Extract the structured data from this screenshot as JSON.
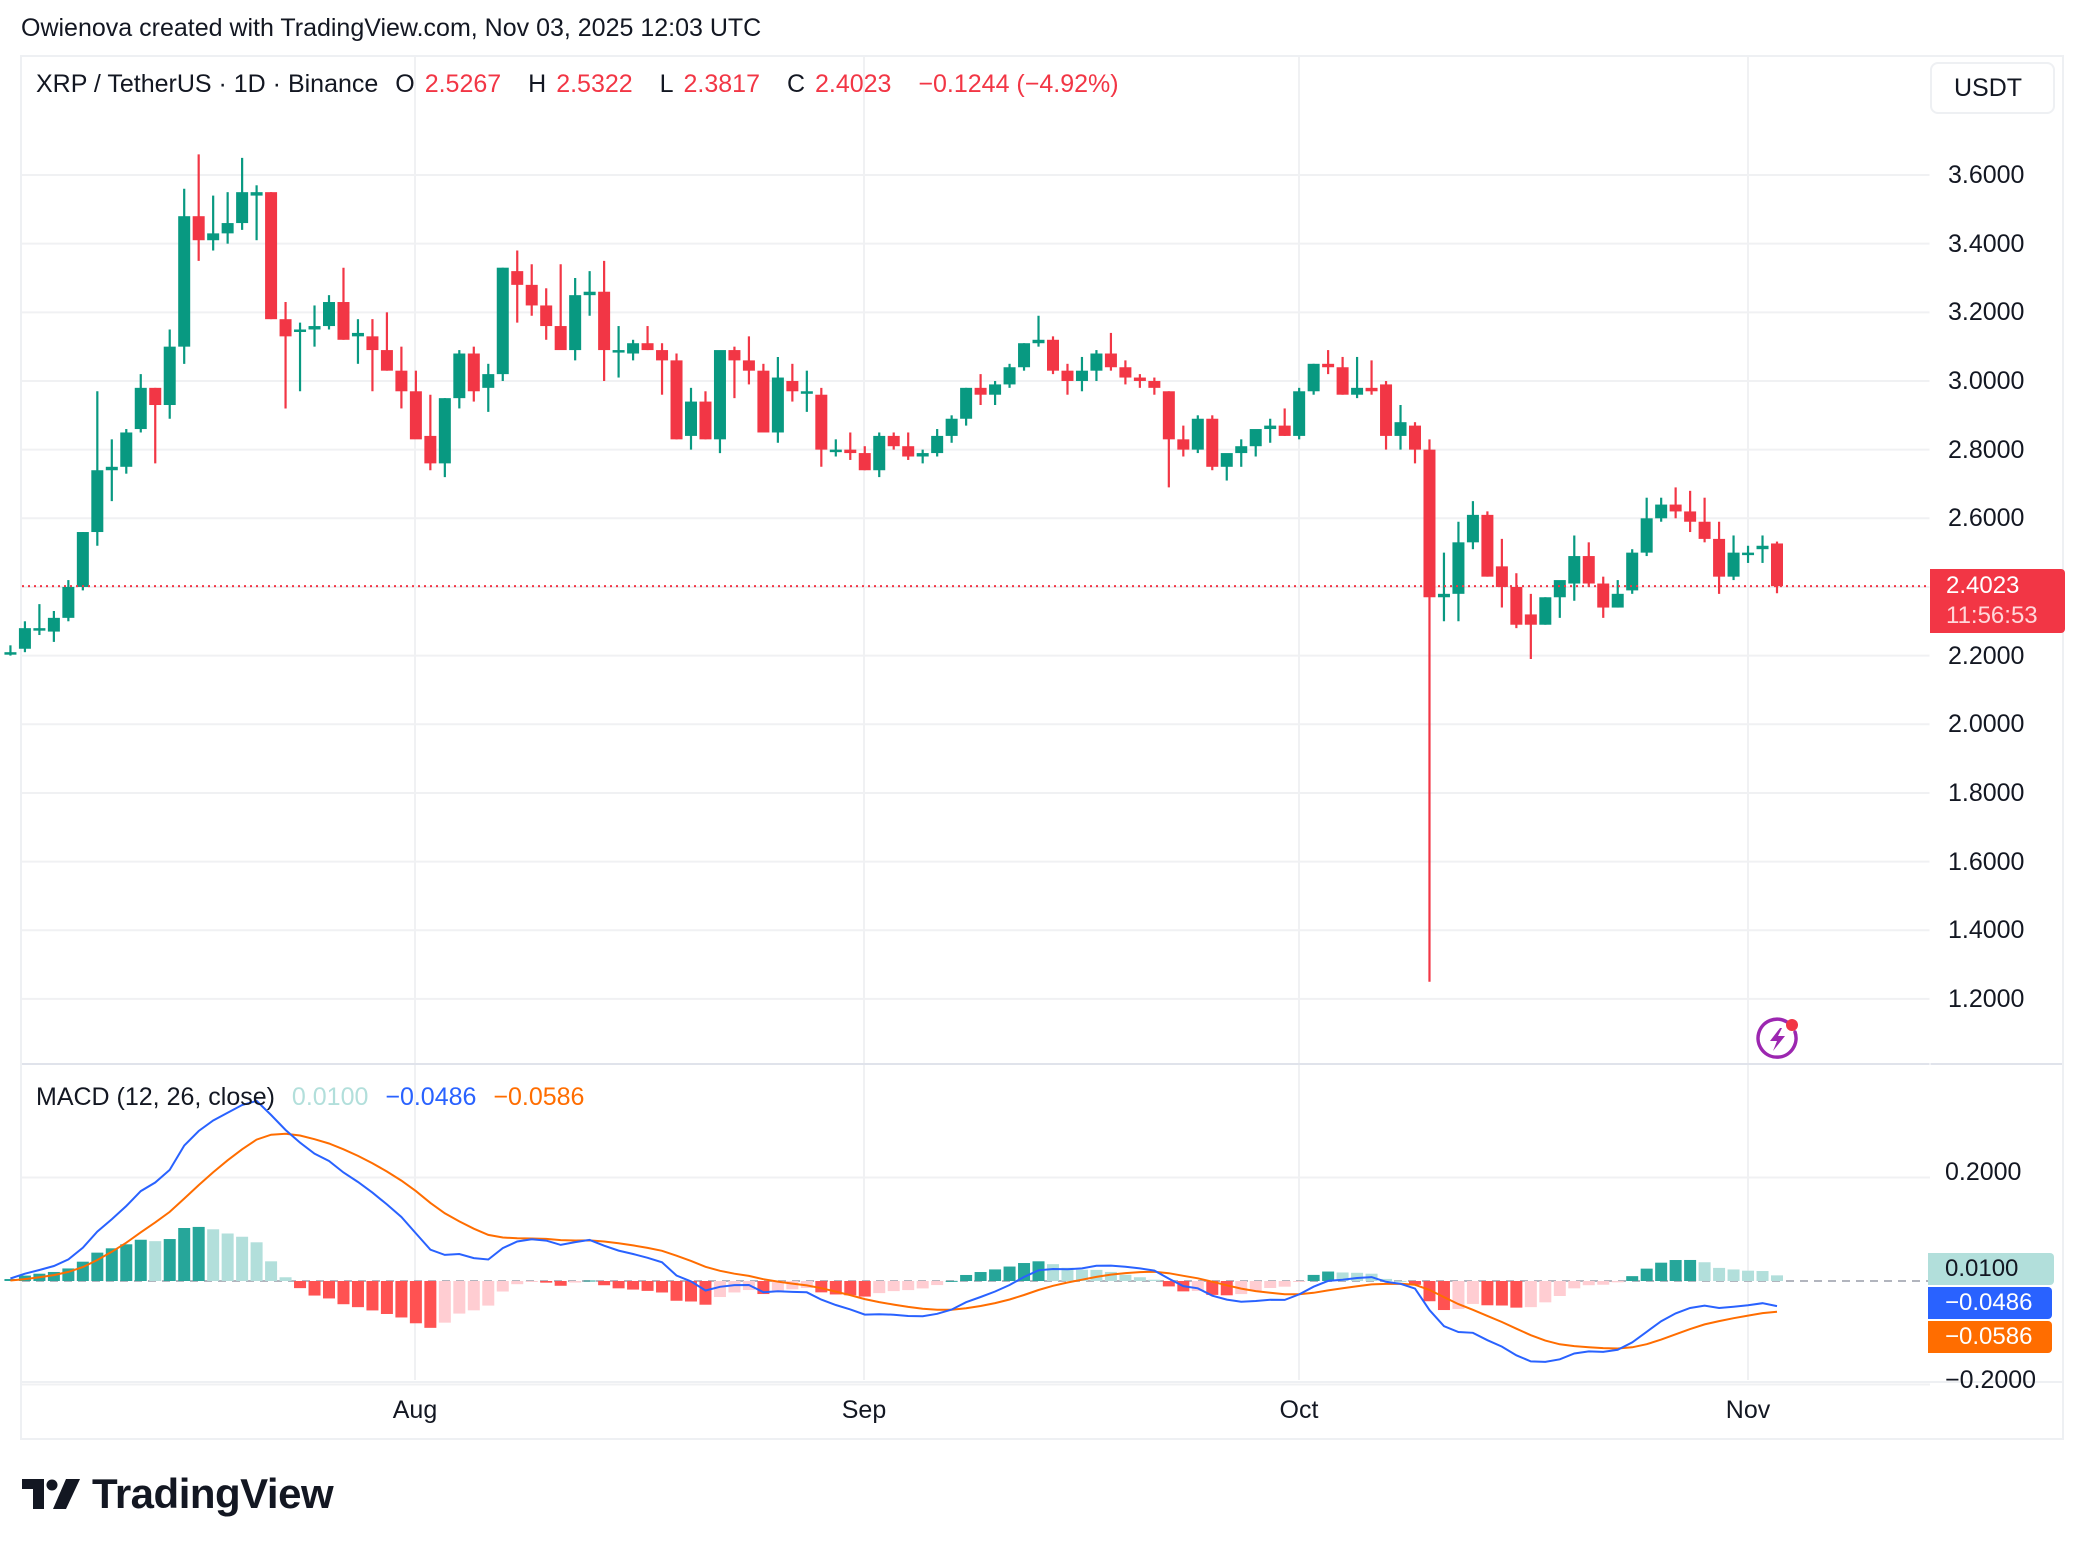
{
  "credit": "Owienova created with TradingView.com, Nov 03, 2025 12:03 UTC",
  "header": {
    "symbol": "XRP / TetherUS · 1D · Binance",
    "open_label": "O",
    "open": "2.5267",
    "high_label": "H",
    "high": "2.5322",
    "low_label": "L",
    "low": "2.3817",
    "close_label": "C",
    "close": "2.4023",
    "change": "−0.1244 (−4.92%)"
  },
  "currency_button": "USDT",
  "price_axis": [
    "3.6000",
    "3.4000",
    "3.2000",
    "3.0000",
    "2.8000",
    "2.6000",
    "2.2000",
    "2.0000",
    "1.8000",
    "1.6000",
    "1.4000",
    "1.2000"
  ],
  "last_price_tag": {
    "price": "2.4023",
    "countdown": "11:56:53"
  },
  "macd": {
    "title": "MACD (12, 26, close)",
    "histogram": "0.0100",
    "macd": "−0.0486",
    "signal": "−0.0586",
    "axis": [
      "0.2000",
      "−0.2000"
    ]
  },
  "time_axis": [
    "Aug",
    "Sep",
    "Oct",
    "Nov"
  ],
  "logo": "TradingView",
  "colors": {
    "up": "#089981",
    "down": "#f23645",
    "macd_line": "#2962ff",
    "signal_line": "#ff6d00",
    "hist_up_strong": "#26a69a",
    "hist_up_weak": "#b2dfdb",
    "hist_down_strong": "#ff5252",
    "hist_down_weak": "#ffcdd2",
    "grid": "#f0f1f3"
  },
  "chart_data": {
    "type": "candlestick",
    "title": "XRP / TetherUS · 1D · Binance",
    "xlabel": "",
    "ylabel": "USDT",
    "ylim": [
      1.05,
      3.85
    ],
    "x_start": "Jul 05, 2025",
    "x_end": "Nov 03, 2025",
    "x_ticks": [
      "Aug",
      "Sep",
      "Oct",
      "Nov"
    ],
    "y_ticks": [
      1.2,
      1.4,
      1.6,
      1.8,
      2.0,
      2.2,
      2.4,
      2.6,
      2.8,
      3.0,
      3.2,
      3.4,
      3.6
    ],
    "last": {
      "open": 2.5267,
      "high": 2.5322,
      "low": 2.3817,
      "close": 2.4023
    },
    "ohlc": [
      [
        2.21,
        2.23,
        2.2,
        2.21
      ],
      [
        2.22,
        2.3,
        2.21,
        2.28
      ],
      [
        2.28,
        2.35,
        2.26,
        2.28
      ],
      [
        2.27,
        2.33,
        2.24,
        2.31
      ],
      [
        2.31,
        2.42,
        2.3,
        2.4
      ],
      [
        2.4,
        2.56,
        2.39,
        2.56
      ],
      [
        2.56,
        2.97,
        2.52,
        2.74
      ],
      [
        2.74,
        2.83,
        2.65,
        2.75
      ],
      [
        2.75,
        2.86,
        2.73,
        2.85
      ],
      [
        2.86,
        3.02,
        2.85,
        2.98
      ],
      [
        2.98,
        2.98,
        2.76,
        2.93
      ],
      [
        2.93,
        3.15,
        2.89,
        3.1
      ],
      [
        3.1,
        3.56,
        3.05,
        3.48
      ],
      [
        3.48,
        3.66,
        3.35,
        3.41
      ],
      [
        3.41,
        3.54,
        3.38,
        3.43
      ],
      [
        3.43,
        3.55,
        3.4,
        3.46
      ],
      [
        3.46,
        3.65,
        3.44,
        3.55
      ],
      [
        3.54,
        3.57,
        3.41,
        3.55
      ],
      [
        3.55,
        3.55,
        3.18,
        3.18
      ],
      [
        3.18,
        3.23,
        2.92,
        3.13
      ],
      [
        3.15,
        3.17,
        2.97,
        3.15
      ],
      [
        3.15,
        3.22,
        3.1,
        3.16
      ],
      [
        3.16,
        3.25,
        3.15,
        3.23
      ],
      [
        3.23,
        3.33,
        3.12,
        3.12
      ],
      [
        3.13,
        3.18,
        3.05,
        3.14
      ],
      [
        3.13,
        3.18,
        2.97,
        3.09
      ],
      [
        3.09,
        3.2,
        3.03,
        3.03
      ],
      [
        3.03,
        3.1,
        2.92,
        2.97
      ],
      [
        2.97,
        3.03,
        2.91,
        2.83
      ],
      [
        2.84,
        2.96,
        2.74,
        2.76
      ],
      [
        2.76,
        2.95,
        2.72,
        2.95
      ],
      [
        2.95,
        3.09,
        2.92,
        3.08
      ],
      [
        3.08,
        3.1,
        2.94,
        2.97
      ],
      [
        2.98,
        3.05,
        2.91,
        3.02
      ],
      [
        3.02,
        3.33,
        3.0,
        3.33
      ],
      [
        3.32,
        3.38,
        3.17,
        3.28
      ],
      [
        3.28,
        3.34,
        3.19,
        3.22
      ],
      [
        3.22,
        3.27,
        3.12,
        3.16
      ],
      [
        3.16,
        3.34,
        3.13,
        3.09
      ],
      [
        3.09,
        3.3,
        3.06,
        3.25
      ],
      [
        3.25,
        3.32,
        3.19,
        3.26
      ],
      [
        3.26,
        3.35,
        3.0,
        3.09
      ],
      [
        3.09,
        3.16,
        3.01,
        3.09
      ],
      [
        3.08,
        3.12,
        3.06,
        3.11
      ],
      [
        3.11,
        3.16,
        3.09,
        3.09
      ],
      [
        3.09,
        3.11,
        2.96,
        3.06
      ],
      [
        3.06,
        3.08,
        2.83,
        2.83
      ],
      [
        2.84,
        2.98,
        2.8,
        2.94
      ],
      [
        2.94,
        2.97,
        2.83,
        2.83
      ],
      [
        2.83,
        3.07,
        2.79,
        3.09
      ],
      [
        3.09,
        3.1,
        2.95,
        3.06
      ],
      [
        3.06,
        3.13,
        2.99,
        3.03
      ],
      [
        3.03,
        3.05,
        2.92,
        2.85
      ],
      [
        2.85,
        3.07,
        2.82,
        3.01
      ],
      [
        3.0,
        3.05,
        2.94,
        2.97
      ],
      [
        2.97,
        3.03,
        2.91,
        2.97
      ],
      [
        2.96,
        2.98,
        2.75,
        2.8
      ],
      [
        2.8,
        2.83,
        2.78,
        2.8
      ],
      [
        2.8,
        2.85,
        2.77,
        2.79
      ],
      [
        2.79,
        2.81,
        2.74,
        2.74
      ],
      [
        2.74,
        2.85,
        2.72,
        2.84
      ],
      [
        2.84,
        2.85,
        2.8,
        2.81
      ],
      [
        2.81,
        2.85,
        2.77,
        2.78
      ],
      [
        2.78,
        2.8,
        2.76,
        2.79
      ],
      [
        2.79,
        2.86,
        2.78,
        2.84
      ],
      [
        2.84,
        2.9,
        2.82,
        2.89
      ],
      [
        2.89,
        2.98,
        2.87,
        2.98
      ],
      [
        2.98,
        3.02,
        2.93,
        2.96
      ],
      [
        2.96,
        3.0,
        2.93,
        2.99
      ],
      [
        2.99,
        3.05,
        2.98,
        3.04
      ],
      [
        3.04,
        3.11,
        3.03,
        3.11
      ],
      [
        3.11,
        3.19,
        3.1,
        3.12
      ],
      [
        3.12,
        3.13,
        3.02,
        3.03
      ],
      [
        3.03,
        3.05,
        2.96,
        3.0
      ],
      [
        3.0,
        3.07,
        2.97,
        3.03
      ],
      [
        3.03,
        3.09,
        3.0,
        3.08
      ],
      [
        3.08,
        3.14,
        3.03,
        3.04
      ],
      [
        3.04,
        3.06,
        2.99,
        3.01
      ],
      [
        3.01,
        3.02,
        2.98,
        3.0
      ],
      [
        3.0,
        3.01,
        2.96,
        2.98
      ],
      [
        2.97,
        2.97,
        2.69,
        2.83
      ],
      [
        2.83,
        2.87,
        2.78,
        2.8
      ],
      [
        2.8,
        2.9,
        2.79,
        2.89
      ],
      [
        2.89,
        2.9,
        2.74,
        2.75
      ],
      [
        2.75,
        2.78,
        2.71,
        2.79
      ],
      [
        2.79,
        2.83,
        2.75,
        2.81
      ],
      [
        2.81,
        2.85,
        2.78,
        2.86
      ],
      [
        2.86,
        2.89,
        2.82,
        2.87
      ],
      [
        2.87,
        2.92,
        2.84,
        2.84
      ],
      [
        2.84,
        2.98,
        2.83,
        2.97
      ],
      [
        2.97,
        3.05,
        2.96,
        3.05
      ],
      [
        3.05,
        3.09,
        3.02,
        3.04
      ],
      [
        3.04,
        3.07,
        2.96,
        2.96
      ],
      [
        2.96,
        3.07,
        2.95,
        2.98
      ],
      [
        2.98,
        3.06,
        2.96,
        2.97
      ],
      [
        2.99,
        3.0,
        2.8,
        2.84
      ],
      [
        2.84,
        2.93,
        2.8,
        2.88
      ],
      [
        2.87,
        2.88,
        2.76,
        2.8
      ],
      [
        2.8,
        2.83,
        1.25,
        2.37
      ],
      [
        2.37,
        2.5,
        2.3,
        2.38
      ],
      [
        2.38,
        2.59,
        2.3,
        2.53
      ],
      [
        2.53,
        2.65,
        2.51,
        2.61
      ],
      [
        2.61,
        2.62,
        2.43,
        2.43
      ],
      [
        2.46,
        2.54,
        2.34,
        2.4
      ],
      [
        2.4,
        2.44,
        2.28,
        2.29
      ],
      [
        2.32,
        2.38,
        2.19,
        2.29
      ],
      [
        2.29,
        2.37,
        2.29,
        2.37
      ],
      [
        2.37,
        2.4,
        2.31,
        2.42
      ],
      [
        2.41,
        2.55,
        2.36,
        2.49
      ],
      [
        2.49,
        2.53,
        2.4,
        2.41
      ],
      [
        2.41,
        2.43,
        2.31,
        2.34
      ],
      [
        2.34,
        2.42,
        2.34,
        2.38
      ],
      [
        2.39,
        2.51,
        2.38,
        2.5
      ],
      [
        2.5,
        2.66,
        2.49,
        2.6
      ],
      [
        2.6,
        2.66,
        2.59,
        2.64
      ],
      [
        2.64,
        2.69,
        2.6,
        2.62
      ],
      [
        2.62,
        2.68,
        2.56,
        2.59
      ],
      [
        2.59,
        2.66,
        2.53,
        2.54
      ],
      [
        2.54,
        2.59,
        2.38,
        2.43
      ],
      [
        2.43,
        2.55,
        2.42,
        2.5
      ],
      [
        2.5,
        2.52,
        2.47,
        2.5
      ],
      [
        2.51,
        2.55,
        2.47,
        2.52
      ],
      [
        2.5267,
        2.5322,
        2.3817,
        2.4023
      ]
    ]
  }
}
